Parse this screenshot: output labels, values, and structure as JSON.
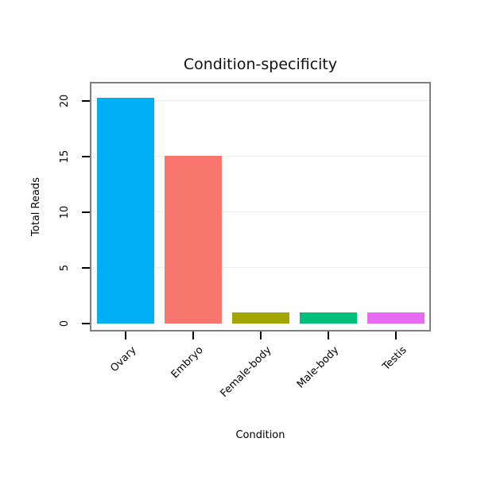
{
  "chart_data": {
    "type": "bar",
    "title": "Condition-specificity",
    "xlabel": "Condition",
    "ylabel": "Total Reads",
    "categories": [
      "Ovary",
      "Embryo",
      "Female-body",
      "Male-body",
      "Testis"
    ],
    "values": [
      20.3,
      15.1,
      1,
      1,
      1
    ],
    "colors": [
      "#00B0F6",
      "#F8766D",
      "#A3A500",
      "#00BF7D",
      "#E76BF3"
    ],
    "yticks": [
      0,
      5,
      10,
      15,
      20
    ],
    "ylim": [
      0,
      21.5
    ],
    "grid": true,
    "legend": "none",
    "panel_border_color": "#7f7f7f",
    "gridline_color": "#ededed",
    "tick_color": "#000000"
  }
}
